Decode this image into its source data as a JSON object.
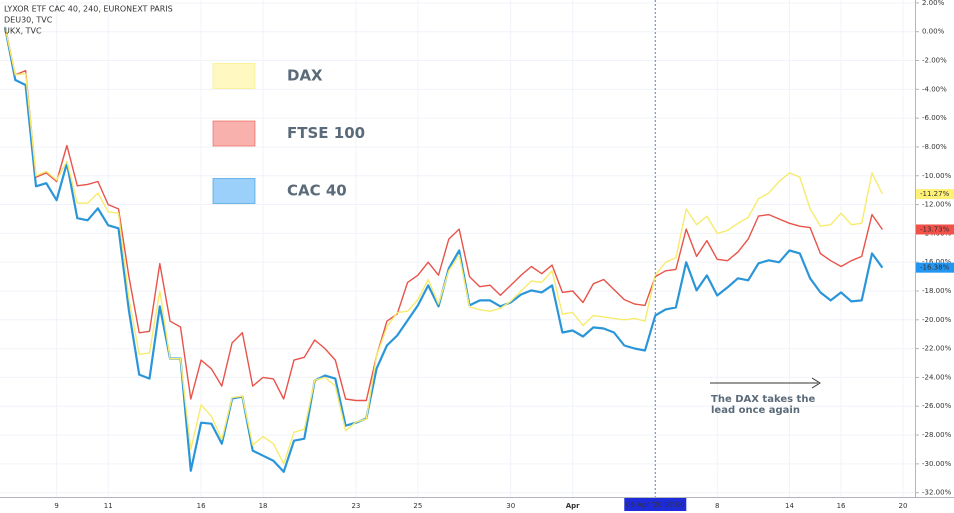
{
  "chart_data": {
    "type": "line",
    "header": [
      "LYXOR ETF CAC 40, 240, EURONEXT PARIS",
      "DEU30, TVC",
      "UKX, TVC"
    ],
    "categories": [
      null,
      null,
      null,
      null,
      null,
      "9",
      null,
      null,
      null,
      null,
      "11",
      null,
      null,
      null,
      null,
      null,
      null,
      null,
      null,
      "16",
      null,
      null,
      null,
      null,
      null,
      "18",
      null,
      null,
      null,
      null,
      null,
      null,
      null,
      null,
      "23",
      null,
      null,
      null,
      null,
      null,
      "25",
      null,
      null,
      null,
      null,
      null,
      null,
      null,
      null,
      "30",
      null,
      null,
      null,
      null,
      null,
      "Apr",
      null,
      null,
      null,
      null,
      null,
      null,
      null,
      null,
      null,
      null,
      null,
      null,
      null,
      "8",
      null,
      null,
      null,
      null,
      null,
      null,
      "14",
      null,
      null,
      null,
      null,
      "16",
      null,
      null,
      null,
      null,
      null,
      "20"
    ],
    "series": [
      {
        "name": "DAX",
        "color": "#f7eb6e",
        "label_color": "#fff176",
        "label_text_color": "#333",
        "values": [
          0.33,
          -3.0,
          -2.9,
          -10.0,
          -9.7,
          -10.3,
          -9.0,
          -11.9,
          -11.9,
          -11.2,
          -12.5,
          -12.6,
          -18.5,
          -22.4,
          -22.3,
          -18.0,
          -22.7,
          -22.7,
          -29.0,
          -25.9,
          -26.7,
          -28.3,
          -25.4,
          -25.3,
          -28.7,
          -28.1,
          -28.6,
          -30.0,
          -27.8,
          -27.6,
          -24.2,
          -24.0,
          -24.6,
          -27.7,
          -27.1,
          -26.9,
          -22.5,
          -20.5,
          -19.5,
          -19.4,
          -18.6,
          -17.2,
          -18.9,
          -16.6,
          -15.5,
          -19.1,
          -19.3,
          -19.4,
          -19.2,
          -18.7,
          -18.0,
          -17.3,
          -17.4,
          -16.6,
          -19.6,
          -19.5,
          -20.4,
          -19.7,
          -19.8,
          -19.9,
          -20.0,
          -19.9,
          -20.1,
          -16.9,
          -16.0,
          -15.7,
          -12.3,
          -13.4,
          -12.8,
          -14.0,
          -13.8,
          -13.3,
          -12.9,
          -11.6,
          -11.2,
          -10.4,
          -9.8,
          -10.1,
          -12.3,
          -13.5,
          -13.4,
          -12.6,
          -13.4,
          -13.3,
          -9.8,
          -11.27,
          null,
          null
        ],
        "value_labels": [
          null,
          null,
          null,
          null,
          null,
          null,
          null,
          null,
          null,
          null,
          null,
          null,
          null,
          null,
          null,
          null,
          null,
          null,
          null,
          null,
          null,
          null,
          null,
          null,
          null,
          null,
          null,
          null,
          null,
          null,
          null,
          null,
          null,
          null,
          null,
          null,
          null,
          null,
          null,
          null,
          null,
          null,
          null,
          null,
          null,
          null,
          null,
          null,
          null,
          null,
          null,
          null,
          null,
          null,
          null,
          null,
          null,
          null,
          null,
          null,
          null,
          null,
          null,
          null,
          null,
          null,
          null,
          null,
          null,
          null,
          null,
          null,
          null,
          null,
          null,
          null,
          null,
          null,
          null,
          null,
          null,
          null,
          null,
          null,
          null,
          "-11.27%",
          null,
          null
        ]
      },
      {
        "name": "FTSE 100",
        "color": "#e8534a",
        "label_color": "#f2514a",
        "label_text_color": "#fff",
        "values": [
          0.33,
          -3.0,
          -2.7,
          -10.1,
          -9.8,
          -10.4,
          -7.9,
          -10.7,
          -10.6,
          -10.4,
          -12.0,
          -12.3,
          -17.0,
          -20.9,
          -20.8,
          -16.1,
          -20.1,
          -20.5,
          -25.5,
          -22.8,
          -23.4,
          -24.6,
          -21.6,
          -20.9,
          -24.6,
          -24.0,
          -24.1,
          -25.5,
          -22.8,
          -22.6,
          -21.4,
          -22.0,
          -22.8,
          -25.5,
          -25.6,
          -25.6,
          -22.5,
          -20.1,
          -19.6,
          -17.4,
          -16.9,
          -16.0,
          -16.9,
          -14.4,
          -13.7,
          -17.0,
          -17.7,
          -17.6,
          -18.3,
          -17.6,
          -16.9,
          -16.3,
          -16.8,
          -16.2,
          -18.1,
          -18.0,
          -18.8,
          -17.5,
          -17.2,
          -17.9,
          -18.6,
          -18.9,
          -19.0,
          -17.0,
          -16.6,
          -16.5,
          -13.7,
          -15.6,
          -14.5,
          -15.8,
          -15.9,
          -15.3,
          -14.4,
          -12.8,
          -12.7,
          -13.0,
          -13.3,
          -13.5,
          -13.6,
          -15.4,
          -15.9,
          -16.3,
          -15.9,
          -15.6,
          -12.7,
          -13.73,
          null,
          null
        ],
        "value_labels": [
          null,
          null,
          null,
          null,
          null,
          null,
          null,
          null,
          null,
          null,
          null,
          null,
          null,
          null,
          null,
          null,
          null,
          null,
          null,
          null,
          null,
          null,
          null,
          null,
          null,
          null,
          null,
          null,
          null,
          null,
          null,
          null,
          null,
          null,
          null,
          null,
          null,
          null,
          null,
          null,
          null,
          null,
          null,
          null,
          null,
          null,
          null,
          null,
          null,
          null,
          null,
          null,
          null,
          null,
          null,
          null,
          null,
          null,
          null,
          null,
          null,
          null,
          null,
          null,
          null,
          null,
          null,
          null,
          null,
          null,
          null,
          null,
          null,
          null,
          null,
          null,
          null,
          null,
          null,
          null,
          null,
          null,
          null,
          null,
          null,
          "-13.73%",
          null,
          null
        ]
      },
      {
        "name": "CAC 40",
        "color": "#2a96d9",
        "label_color": "#2196f3",
        "label_text_color": "#fff",
        "values": [
          0.33,
          -3.35,
          -3.7,
          -10.73,
          -10.52,
          -11.7,
          -9.13,
          -12.95,
          -13.09,
          -12.26,
          -13.44,
          -13.65,
          -19.35,
          -23.8,
          -24.08,
          -19.07,
          -22.69,
          -22.69,
          -30.48,
          -27.14,
          -27.21,
          -28.6,
          -25.47,
          -25.33,
          -29.08,
          -29.43,
          -29.78,
          -30.55,
          -28.39,
          -28.25,
          -24.22,
          -23.87,
          -24.08,
          -27.35,
          -27.14,
          -26.86,
          -23.38,
          -21.78,
          -21.09,
          -20.04,
          -19.0,
          -17.61,
          -19.07,
          -16.43,
          -15.18,
          -19.0,
          -18.65,
          -18.65,
          -19.07,
          -18.79,
          -18.24,
          -17.96,
          -18.1,
          -17.61,
          -20.88,
          -20.74,
          -21.16,
          -20.53,
          -20.6,
          -20.88,
          -21.78,
          -21.99,
          -22.13,
          -19.7,
          -19.28,
          -19.14,
          -16.01,
          -17.96,
          -16.92,
          -18.31,
          -17.75,
          -17.12,
          -17.26,
          -16.08,
          -15.87,
          -16.01,
          -15.18,
          -15.39,
          -17.12,
          -18.1,
          -18.65,
          -18.1,
          -18.72,
          -18.65,
          -15.39,
          -16.38,
          null,
          null
        ],
        "value_labels": [
          null,
          null,
          null,
          null,
          null,
          null,
          null,
          null,
          null,
          null,
          null,
          null,
          null,
          null,
          null,
          null,
          null,
          null,
          null,
          null,
          null,
          null,
          null,
          null,
          null,
          null,
          null,
          null,
          null,
          null,
          null,
          null,
          null,
          null,
          null,
          null,
          null,
          null,
          null,
          null,
          null,
          null,
          null,
          null,
          null,
          null,
          null,
          null,
          null,
          null,
          null,
          null,
          null,
          null,
          null,
          null,
          null,
          null,
          null,
          null,
          null,
          null,
          null,
          null,
          null,
          null,
          null,
          null,
          null,
          null,
          null,
          null,
          null,
          null,
          null,
          null,
          null,
          null,
          null,
          null,
          null,
          null,
          null,
          null,
          null,
          "-16.38%",
          null,
          null
        ]
      }
    ],
    "ylim": [
      -32.3,
      2.2
    ],
    "yticks": [
      {
        "value": 2,
        "label": "2.00%"
      },
      {
        "value": 0,
        "label": "0.00%"
      },
      {
        "value": -2,
        "label": "-2.00%"
      },
      {
        "value": -4,
        "label": "-4.00%"
      },
      {
        "value": -6,
        "label": "-6.00%"
      },
      {
        "value": -8,
        "label": "-8.00%"
      },
      {
        "value": -10,
        "label": "-10.00%"
      },
      {
        "value": -12,
        "label": "-12.00%"
      },
      {
        "value": -14,
        "label": "-14.00%"
      },
      {
        "value": -16,
        "label": "-16.00%"
      },
      {
        "value": -18,
        "label": "-18.00%"
      },
      {
        "value": -20,
        "label": "-20.00%"
      },
      {
        "value": -22,
        "label": "-22.00%"
      },
      {
        "value": -24,
        "label": "-24.00%"
      },
      {
        "value": -26,
        "label": "-26.00%"
      },
      {
        "value": -28,
        "label": "-28.00%"
      },
      {
        "value": -30,
        "label": "-30.00%"
      },
      {
        "value": -32,
        "label": "-32.00%"
      }
    ],
    "grid": true,
    "crosshair": {
      "index": 63,
      "label": "06 Apr '20  07:00"
    },
    "annotation": [
      "The DAX takes the",
      "lead once again"
    ]
  }
}
